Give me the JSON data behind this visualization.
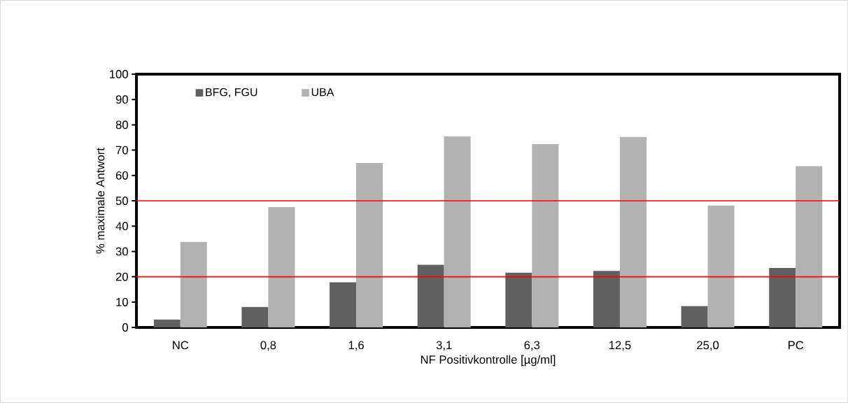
{
  "chart_data": {
    "type": "bar",
    "xlabel": "NF Positivkontrolle [µg/ml]",
    "ylabel": "% maximale Antwort",
    "categories": [
      "NC",
      "0,8",
      "1,6",
      "3,1",
      "6,3",
      "12,5",
      "25,0",
      "PC"
    ],
    "series": [
      {
        "name": "BFG, FGU",
        "color": "#606060",
        "values": [
          3.1,
          8.1,
          17.8,
          24.7,
          21.6,
          22.3,
          8.4,
          23.5
        ]
      },
      {
        "name": "UBA",
        "color": "#b2b2b2",
        "values": [
          33.8,
          47.5,
          64.9,
          75.4,
          72.4,
          75.2,
          48.1,
          63.7
        ]
      }
    ],
    "ylim": [
      0,
      100
    ],
    "yticks": [
      0,
      10,
      20,
      30,
      40,
      50,
      60,
      70,
      80,
      90,
      100
    ],
    "ref_lines": [
      {
        "axis": "y",
        "value": 50,
        "color": "#ff0000"
      },
      {
        "axis": "y",
        "value": 20,
        "color": "#ff0000"
      }
    ],
    "legend": "top left",
    "grid": false
  }
}
